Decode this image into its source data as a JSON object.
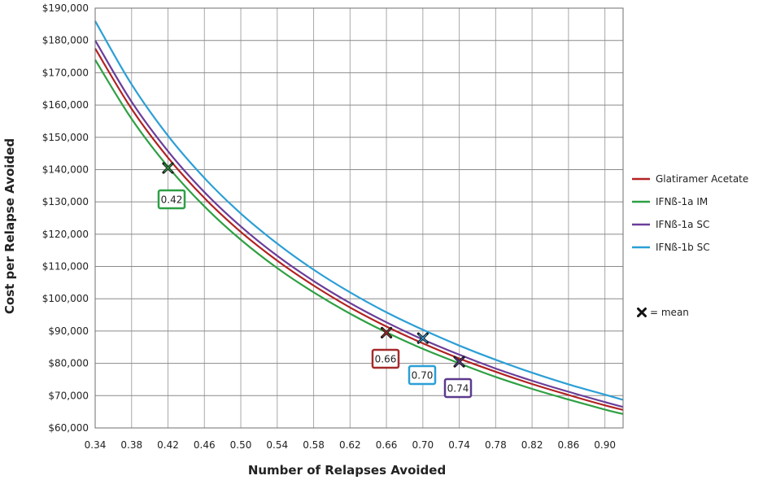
{
  "chart_data": {
    "type": "line",
    "title": "",
    "xlabel": "Number of Relapses Avoided",
    "ylabel": "Cost per Relapse Avoided",
    "xlim": [
      0.34,
      0.92
    ],
    "ylim": [
      60000,
      190000
    ],
    "x_ticks": [
      "0.34",
      "0.38",
      "0.42",
      "0.46",
      "0.50",
      "0.54",
      "0.58",
      "0.62",
      "0.66",
      "0.70",
      "0.74",
      "0.78",
      "0.82",
      "0.86",
      "0.90"
    ],
    "y_ticks": [
      "$60,000",
      "$70,000",
      "$80,000",
      "$90,000",
      "$100,000",
      "$110,000",
      "$120,000",
      "$130,000",
      "$140,000",
      "$150,000",
      "$160,000",
      "$170,000",
      "$180,000",
      "$190,000"
    ],
    "grid": true,
    "legend_position": "right",
    "series": [
      {
        "name": "Glatiramer Acetate",
        "color": "#b22222",
        "x": [
          0.34,
          0.38,
          0.42,
          0.46,
          0.5,
          0.54,
          0.58,
          0.62,
          0.66,
          0.7,
          0.74,
          0.78,
          0.82,
          0.86,
          0.9,
          0.92
        ],
        "y": [
          177500,
          158800,
          143700,
          131200,
          120700,
          111800,
          104100,
          97300,
          91400,
          86200,
          81500,
          77400,
          73600,
          70200,
          67000,
          65600
        ]
      },
      {
        "name": "IFNß-1a IM",
        "color": "#2ea043",
        "x": [
          0.34,
          0.38,
          0.42,
          0.46,
          0.5,
          0.54,
          0.58,
          0.62,
          0.66,
          0.7,
          0.74,
          0.78,
          0.82,
          0.86,
          0.9,
          0.92
        ],
        "y": [
          174000,
          155700,
          140900,
          128600,
          118300,
          109500,
          102000,
          95400,
          89600,
          84500,
          80000,
          75800,
          72100,
          68800,
          65700,
          64300
        ]
      },
      {
        "name": "IFNß-1a SC",
        "color": "#6a3d9a",
        "x": [
          0.34,
          0.38,
          0.42,
          0.46,
          0.5,
          0.54,
          0.58,
          0.62,
          0.66,
          0.7,
          0.74,
          0.78,
          0.82,
          0.86,
          0.9,
          0.92
        ],
        "y": [
          180000,
          161000,
          145700,
          133000,
          122400,
          113300,
          105500,
          98700,
          92700,
          87400,
          82700,
          78400,
          74600,
          71200,
          68000,
          66500
        ]
      },
      {
        "name": "IFNß-1b SC",
        "color": "#2b9fd6",
        "x": [
          0.34,
          0.38,
          0.42,
          0.46,
          0.5,
          0.54,
          0.58,
          0.62,
          0.66,
          0.7,
          0.74,
          0.78,
          0.82,
          0.86,
          0.9,
          0.92
        ],
        "y": [
          186000,
          166400,
          150500,
          137400,
          126400,
          117100,
          109000,
          102000,
          95800,
          90400,
          85500,
          81100,
          77100,
          73500,
          70300,
          68700
        ]
      }
    ],
    "means": [
      {
        "series": "IFNß-1a IM",
        "x": 0.42,
        "y": 140500,
        "label": "0.42",
        "color": "#2ea043"
      },
      {
        "series": "Glatiramer Acetate",
        "x": 0.66,
        "y": 89500,
        "label": "0.66",
        "color": "#a52a2a"
      },
      {
        "series": "IFNß-1b SC",
        "x": 0.7,
        "y": 87800,
        "label": "0.70",
        "color": "#2b9fd6"
      },
      {
        "series": "IFNß-1a SC",
        "x": 0.74,
        "y": 80500,
        "label": "0.74",
        "color": "#5b3a8c"
      }
    ],
    "mean_legend": "= mean"
  }
}
